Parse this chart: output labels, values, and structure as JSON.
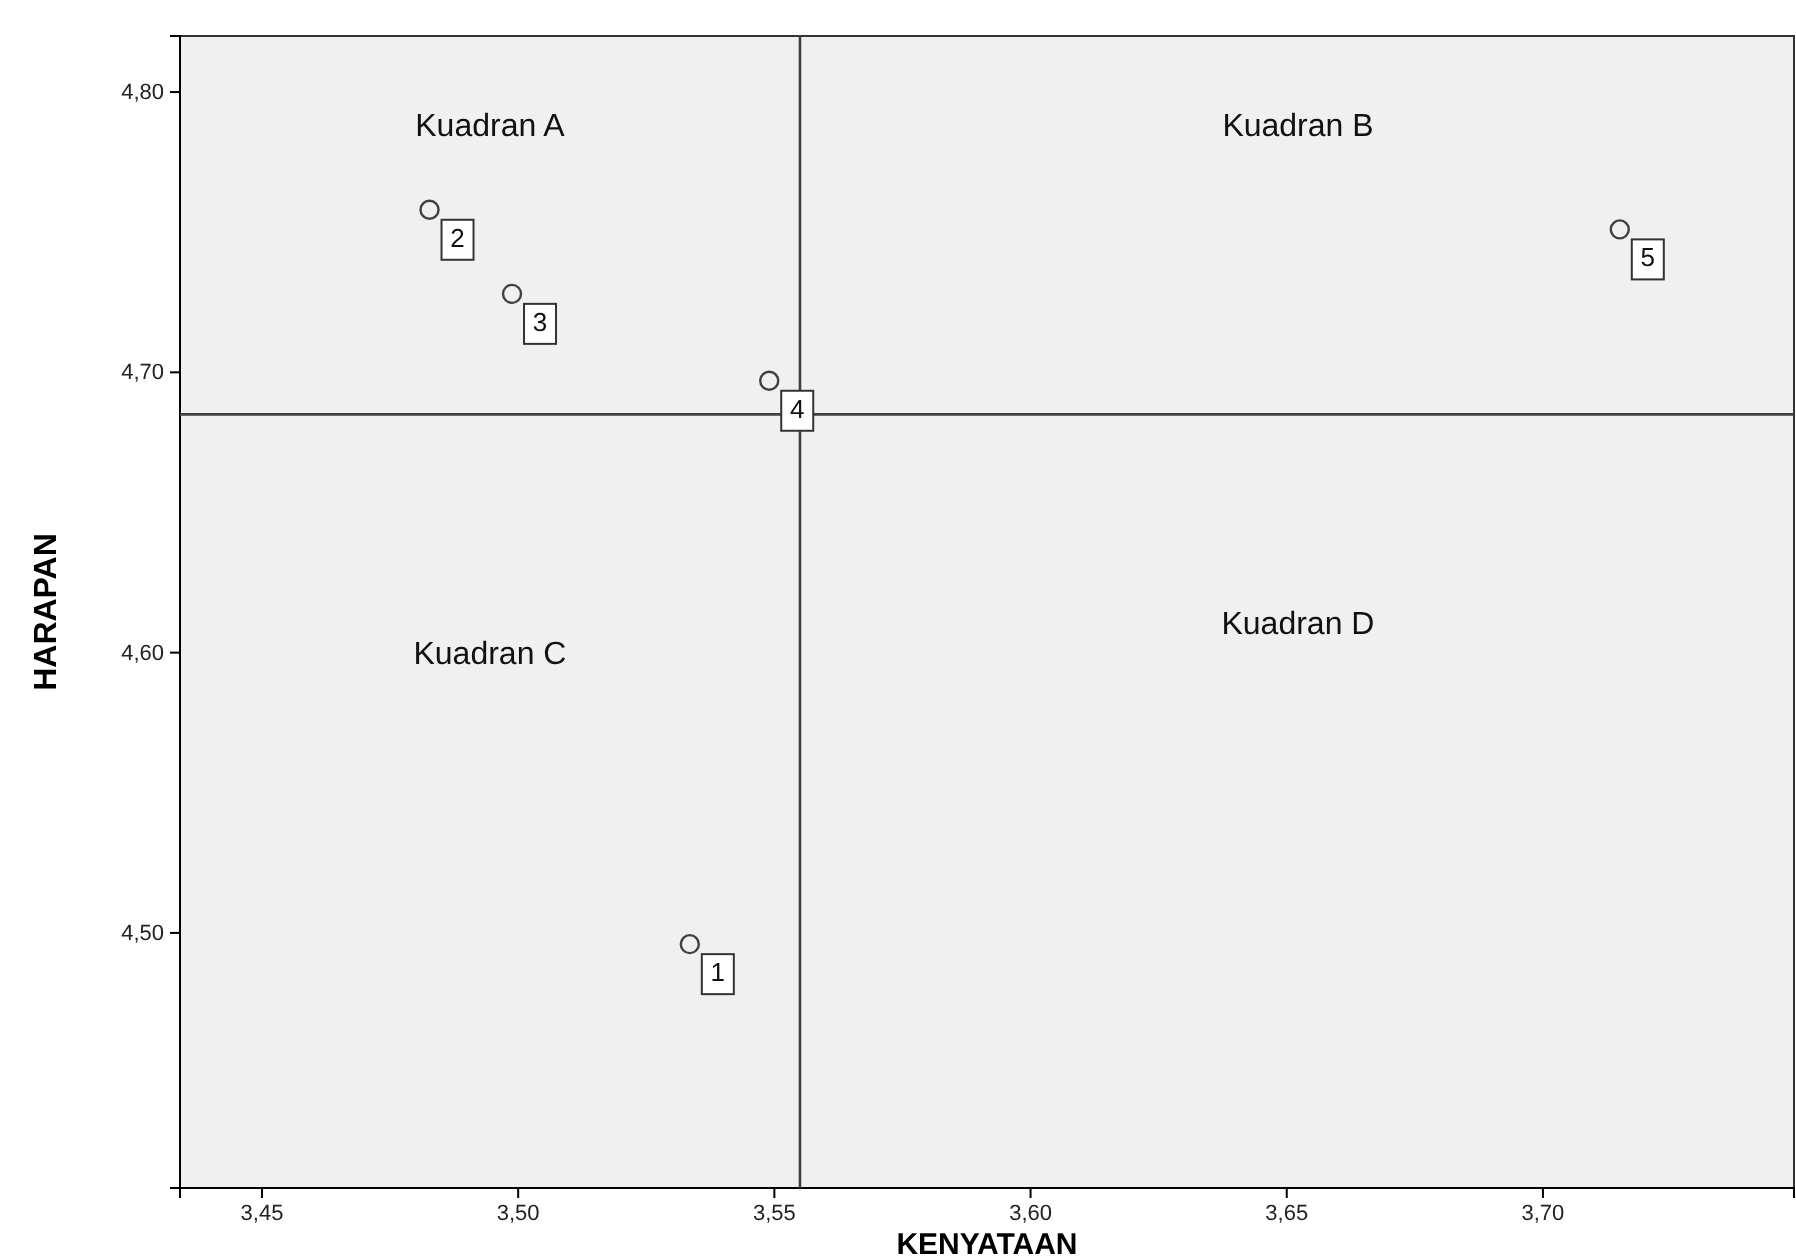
{
  "chart_data": {
    "type": "scatter",
    "xlabel": "KENYATAAN",
    "ylabel": "HARAPAN",
    "x": [
      3.5335,
      3.4827,
      3.4988,
      3.549,
      3.715
    ],
    "values": [
      4.496,
      4.758,
      4.728,
      4.697,
      4.751
    ],
    "color": "#404040",
    "marker": "circle",
    "grid": false,
    "xlim": [
      3.434,
      3.749
    ],
    "ylim": [
      4.409,
      4.82
    ],
    "xticks": [
      {
        "value": 3.45,
        "label": "3,45"
      },
      {
        "value": 3.5,
        "label": "3,50"
      },
      {
        "value": 3.55,
        "label": "3,55"
      },
      {
        "value": 3.6,
        "label": "3,60"
      },
      {
        "value": 3.65,
        "label": "3,65"
      },
      {
        "value": 3.7,
        "label": "3,70"
      }
    ],
    "yticks": [
      {
        "value": 4.5,
        "label": "4,50"
      },
      {
        "value": 4.6,
        "label": "4,60"
      },
      {
        "value": 4.7,
        "label": "4,70"
      },
      {
        "value": 4.8,
        "label": "4,80"
      }
    ],
    "ref_lines": [
      {
        "axis": "x",
        "value": 3.555,
        "color": "#404040"
      },
      {
        "axis": "y",
        "value": 4.685,
        "color": "#404040"
      }
    ],
    "annotations": [
      "Kuadran A",
      "Kuadran B",
      "Kuadran C",
      "Kuadran D",
      {
        "text": "1",
        "x": 3.5335,
        "y": 4.496
      },
      {
        "text": "2",
        "x": 3.4827,
        "y": 4.758
      },
      {
        "text": "3",
        "x": 3.4988,
        "y": 4.728
      },
      {
        "text": "4",
        "x": 3.549,
        "y": 4.697
      },
      {
        "text": "5",
        "x": 3.715,
        "y": 4.751
      }
    ]
  }
}
